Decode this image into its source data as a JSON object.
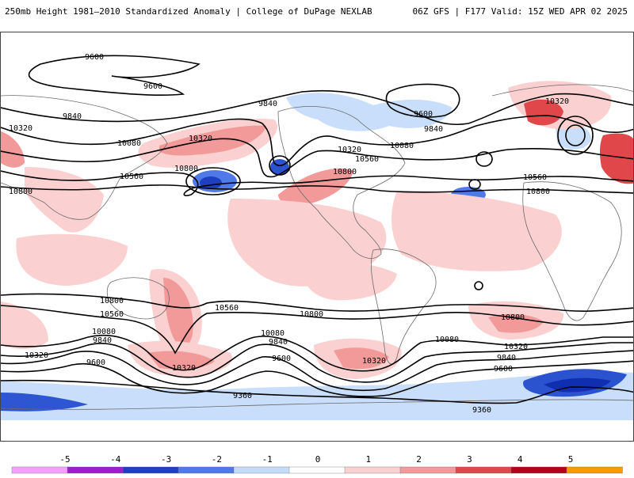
{
  "header": {
    "title_left": "250mb Height 1981–2010 Standardized Anomaly | College of DuPage NEXLAB",
    "title_right": "06Z GFS | F177 Valid: 15Z WED APR 02 2025"
  },
  "map": {
    "contour_labels": [
      "9600",
      "9600",
      "9840",
      "9840",
      "9600",
      "9840",
      "10320",
      "10320",
      "10080",
      "10560",
      "10800",
      "10800",
      "10320",
      "10560",
      "10080",
      "10800",
      "10560",
      "10800",
      "10320",
      "10800",
      "10560",
      "10800",
      "10560",
      "10800",
      "10080",
      "9840",
      "9600",
      "10320",
      "10320",
      "10080",
      "9840",
      "9600",
      "10320",
      "10080",
      "10320",
      "9840",
      "9600",
      "9360",
      "9360"
    ]
  },
  "legend": {
    "ticks": [
      "-5",
      "-4",
      "-3",
      "-2",
      "-1",
      "0",
      "1",
      "2",
      "3",
      "4",
      "5"
    ],
    "colors": [
      "#f5a0ff",
      "#9a1fc8",
      "#1e3fbf",
      "#4f79e6",
      "#c3dcfa",
      "#ffffff",
      "#fbd0d0",
      "#f29a9a",
      "#e0474a",
      "#b5001c",
      "#f49c00"
    ],
    "color_meaning": "standardized anomaly"
  }
}
